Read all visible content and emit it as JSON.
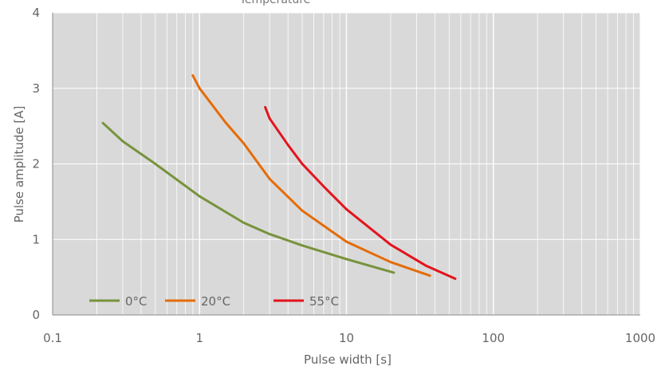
{
  "chart_data": {
    "type": "line",
    "title_fragment": "Temperature",
    "xlabel": "Pulse width [s]",
    "ylabel": "Pulse amplitude [A]",
    "x_scale": "log",
    "xlim": [
      0.1,
      1000
    ],
    "ylim": [
      0,
      4
    ],
    "x_ticks": [
      "0.1",
      "1",
      "10",
      "100",
      "1000"
    ],
    "y_ticks": [
      "0",
      "1",
      "2",
      "3",
      "4"
    ],
    "grid": true,
    "legend_position": "bottom-left",
    "background": "#d9d9d9",
    "series": [
      {
        "name": "0°C",
        "color": "#77933c",
        "x": [
          0.22,
          0.3,
          0.5,
          1,
          2,
          3,
          5,
          10,
          21
        ],
        "y": [
          2.54,
          2.3,
          2.0,
          1.57,
          1.22,
          1.07,
          0.92,
          0.74,
          0.56
        ]
      },
      {
        "name": "20°C",
        "color": "#e46c0a",
        "x": [
          0.9,
          1,
          1.5,
          2,
          3,
          5,
          10,
          20,
          37
        ],
        "y": [
          3.17,
          3.0,
          2.55,
          2.27,
          1.8,
          1.38,
          0.97,
          0.7,
          0.52
        ]
      },
      {
        "name": "55°C",
        "color": "#e3141c",
        "x": [
          2.8,
          3,
          4,
          5,
          7,
          10,
          20,
          35,
          55
        ],
        "y": [
          2.75,
          2.6,
          2.25,
          2.0,
          1.7,
          1.4,
          0.93,
          0.65,
          0.48
        ]
      }
    ]
  }
}
